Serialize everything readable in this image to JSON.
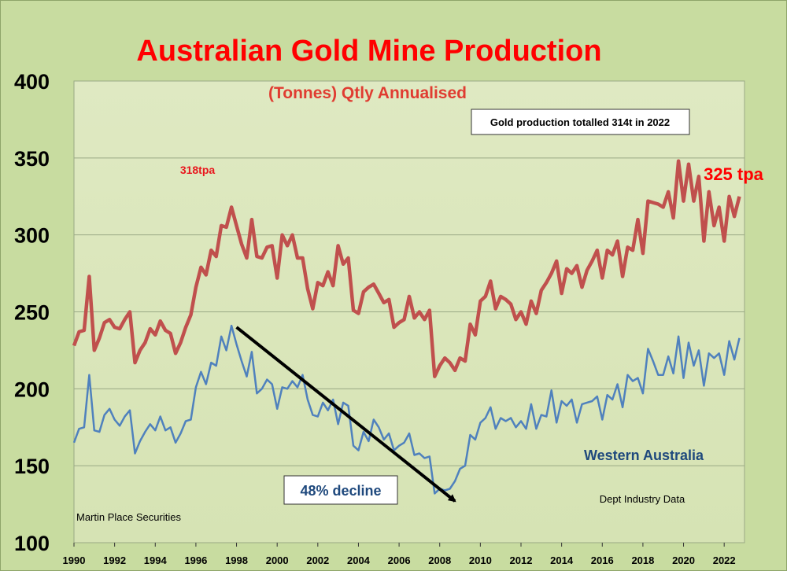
{
  "chart_data": {
    "type": "line",
    "title": "Australian Gold Mine Production",
    "subtitle": "(Tonnes) Qtly Annualised",
    "xlabel": "",
    "ylabel": "",
    "x_start": 1990,
    "x_end": 2023,
    "x_step": 0.25,
    "xlim": [
      1990,
      2023
    ],
    "ylim": [
      100,
      400
    ],
    "yticks": [
      100,
      150,
      200,
      250,
      300,
      350,
      400
    ],
    "xticks": [
      "1990",
      "1992",
      "1994",
      "1996",
      "1998",
      "2000",
      "2002",
      "2004",
      "2006",
      "2008",
      "2010",
      "2012",
      "2014",
      "2016",
      "2018",
      "2020",
      "2022"
    ],
    "grid": true,
    "series": [
      {
        "name": "",
        "color": "#c0504d",
        "values": [
          228,
          237,
          238,
          273,
          225,
          233,
          243,
          245,
          240,
          239,
          245,
          250,
          217,
          225,
          230,
          239,
          235,
          244,
          238,
          236,
          223,
          230,
          240,
          248,
          266,
          279,
          274,
          290,
          286,
          306,
          305,
          318,
          306,
          294,
          285,
          310,
          286,
          285,
          292,
          293,
          272,
          300,
          293,
          300,
          285,
          285,
          265,
          252,
          269,
          267,
          276,
          267,
          293,
          281,
          285,
          251,
          249,
          263,
          266,
          268,
          262,
          256,
          258,
          240,
          243,
          245,
          260,
          246,
          250,
          245,
          251,
          208,
          215,
          220,
          217,
          212,
          220,
          218,
          242,
          235,
          257,
          260,
          270,
          252,
          260,
          258,
          255,
          245,
          250,
          242,
          257,
          249,
          264,
          269,
          275,
          283,
          262,
          278,
          275,
          280,
          266,
          277,
          283,
          290,
          272,
          290,
          287,
          296,
          273,
          292,
          290,
          310,
          288,
          322,
          321,
          320,
          318,
          328,
          311,
          348,
          322,
          346,
          322,
          338,
          296,
          328,
          306,
          318,
          296,
          325,
          312,
          325
        ]
      },
      {
        "name": "Western Australia",
        "color": "#4f81bd",
        "values": [
          165,
          174,
          175,
          209,
          173,
          172,
          183,
          187,
          180,
          176,
          182,
          186,
          158,
          166,
          172,
          177,
          173,
          182,
          173,
          175,
          165,
          171,
          179,
          180,
          201,
          211,
          203,
          217,
          215,
          234,
          225,
          241,
          229,
          218,
          208,
          224,
          197,
          200,
          206,
          203,
          187,
          201,
          200,
          205,
          201,
          209,
          193,
          183,
          182,
          191,
          186,
          193,
          177,
          191,
          189,
          163,
          160,
          172,
          166,
          180,
          175,
          167,
          171,
          160,
          163,
          165,
          171,
          157,
          158,
          155,
          156,
          132,
          135,
          134,
          135,
          140,
          148,
          150,
          170,
          167,
          178,
          181,
          188,
          174,
          181,
          179,
          181,
          175,
          179,
          174,
          190,
          174,
          183,
          182,
          199,
          178,
          192,
          189,
          193,
          178,
          190,
          191,
          192,
          195,
          180,
          196,
          193,
          203,
          188,
          209,
          205,
          207,
          197,
          226,
          218,
          209,
          209,
          221,
          210,
          234,
          207,
          230,
          215,
          225,
          202,
          223,
          220,
          223,
          209,
          231,
          219,
          233
        ]
      }
    ],
    "annotations": {
      "note_box": "Gold production totalled 314t in 2022",
      "peak_label": "318tpa",
      "end_label": "325 tpa",
      "series_label": "Western Australia",
      "decline_label": "48% decline",
      "source_left": "Martin Place Securities",
      "source_right": "Dept Industry Data"
    },
    "arrow": {
      "from": [
        1998.0,
        240
      ],
      "to": [
        2008.75,
        127
      ]
    }
  }
}
